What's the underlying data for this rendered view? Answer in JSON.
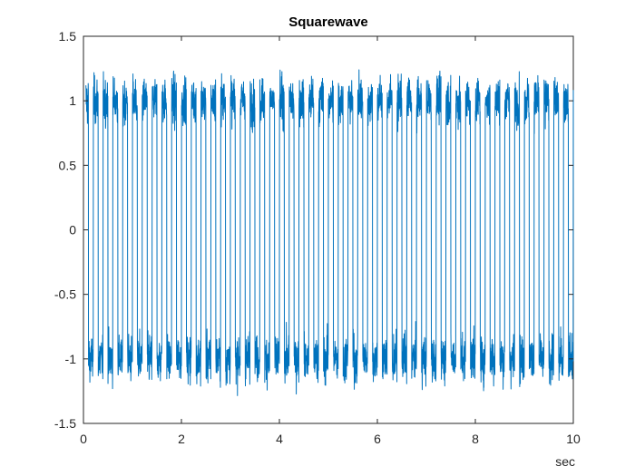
{
  "chart_data": {
    "type": "line",
    "title": "Squarewave",
    "xlabel": "sec",
    "ylabel": "",
    "xlim": [
      0,
      10
    ],
    "ylim": [
      -1.5,
      1.5
    ],
    "xticks": [
      0,
      2,
      4,
      6,
      8,
      10
    ],
    "yticks": [
      -1.5,
      -1,
      -0.5,
      0,
      0.5,
      1,
      1.5
    ],
    "xtick_labels": [
      "0",
      "2",
      "4",
      "6",
      "8",
      "10"
    ],
    "ytick_labels": [
      "-1.5",
      "-1",
      "-0.5",
      "0",
      "0.5",
      "1",
      "1.5"
    ],
    "grid": false,
    "box": true,
    "series": [
      {
        "color": "#0072BD",
        "signal": {
          "shape": "square",
          "frequency_hz": 5,
          "amplitude": 1,
          "x_start": 0.05,
          "x_end": 10,
          "noise_std": 0.09
        }
      }
    ]
  }
}
